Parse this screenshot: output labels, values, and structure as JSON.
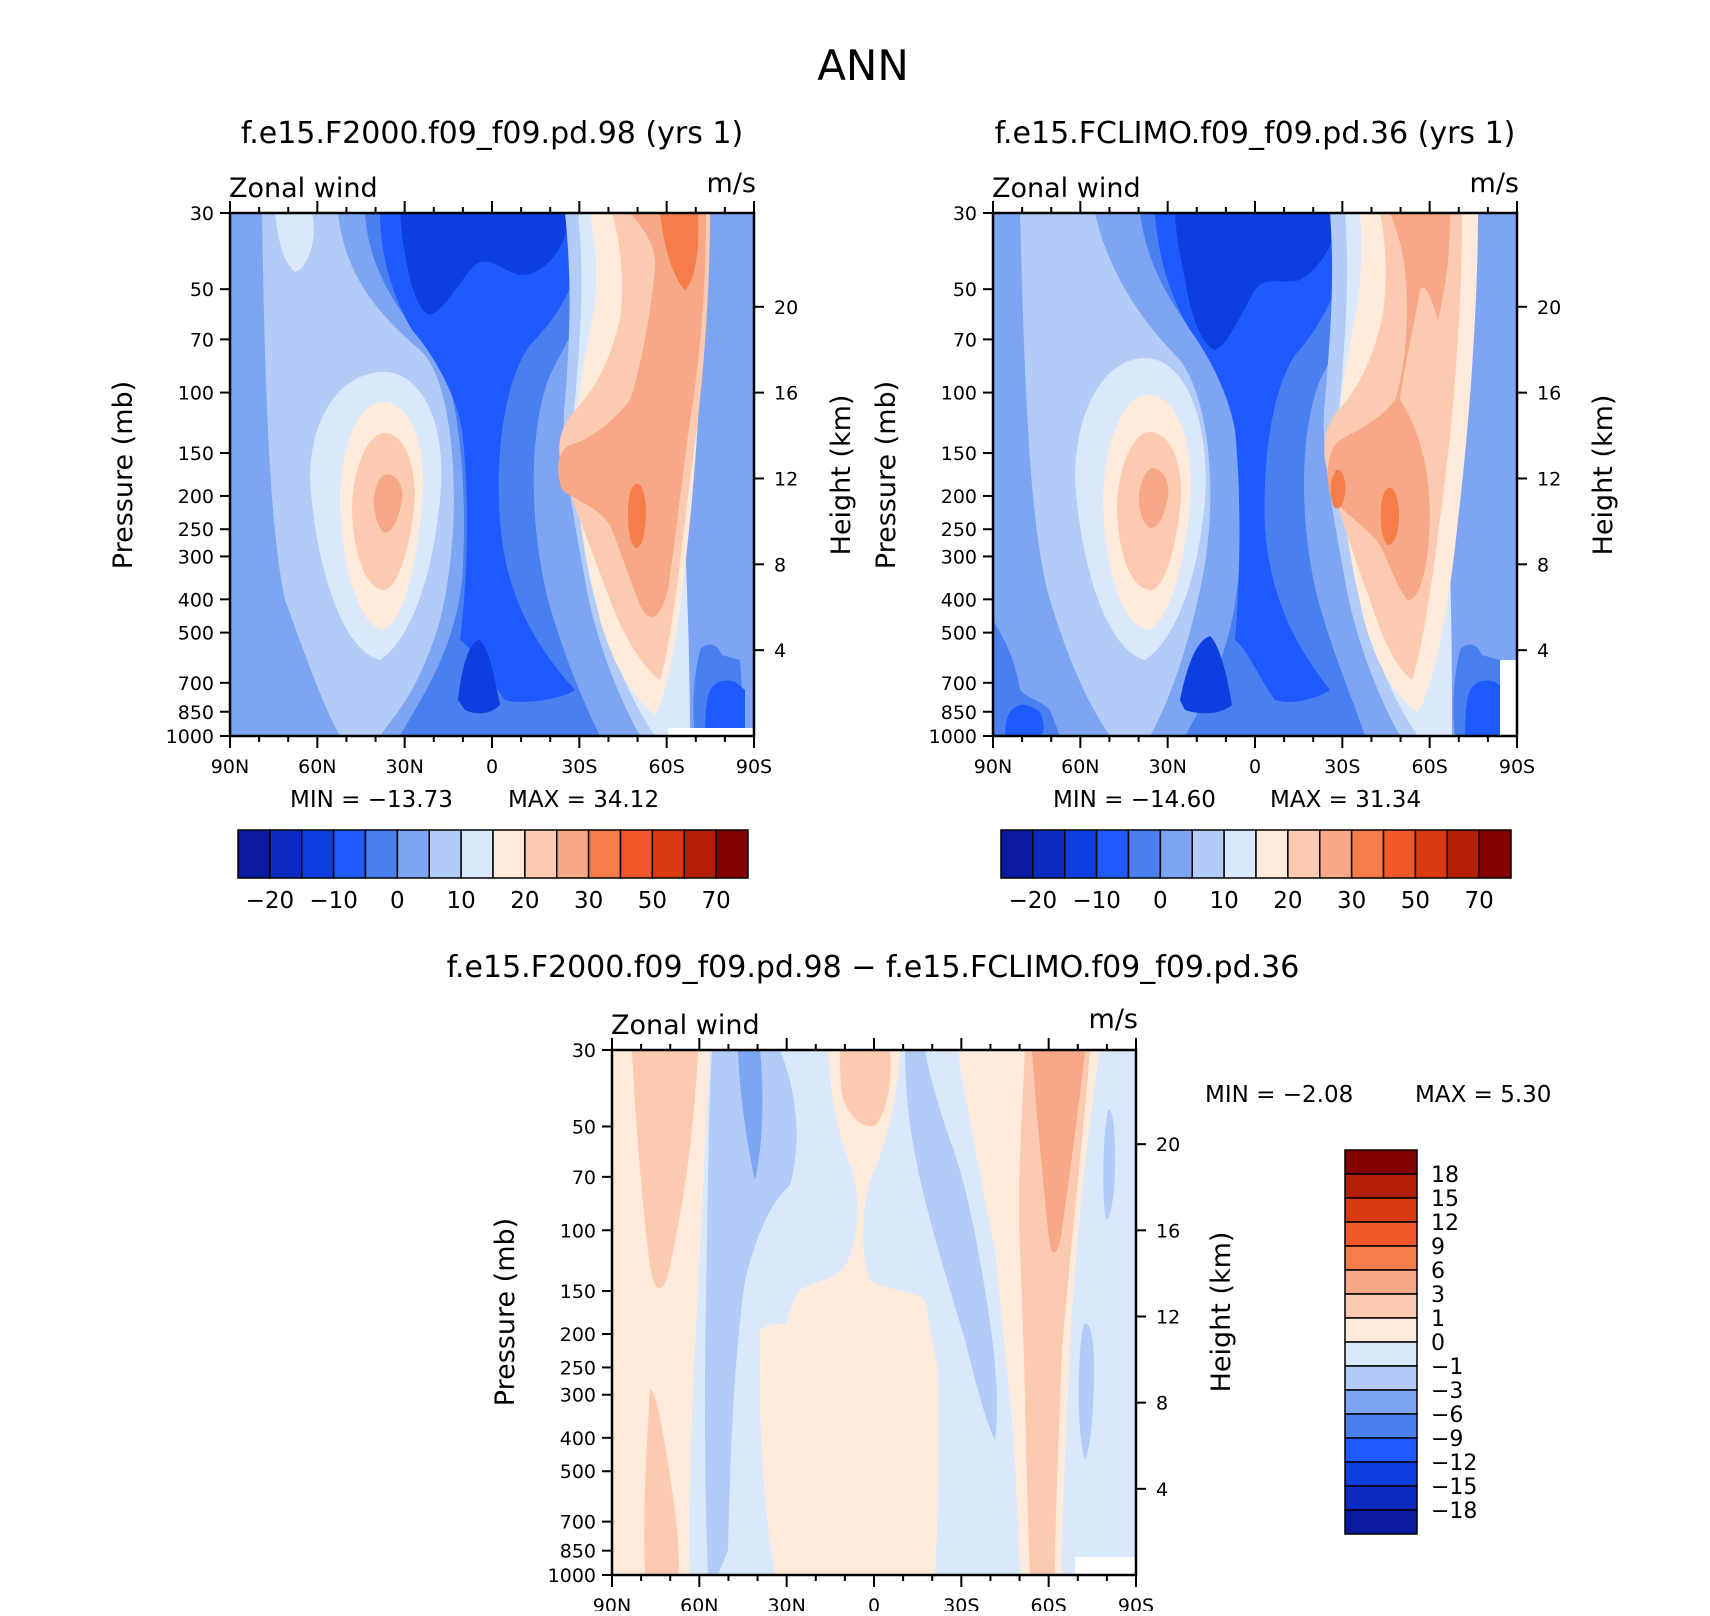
{
  "figure_title": "ANN",
  "colors": {
    "abs_scale": [
      "#0a1aa0",
      "#0b2ac0",
      "#0d3fe0",
      "#1e5aff",
      "#4a7fef",
      "#7ea4f4",
      "#b2cbf7",
      "#d9e8fb",
      "#fdeadb",
      "#fbcab0",
      "#f7a886",
      "#f57d4a",
      "#f2582a",
      "#d93a12",
      "#b21f05",
      "#850000"
    ],
    "diff_scale": [
      "#0a1aa0",
      "#0b2ac0",
      "#0d3fe0",
      "#1e5aff",
      "#4a7fef",
      "#7ea4f4",
      "#b2cbf7",
      "#d9e8fb",
      "#fdeadb",
      "#fbcab0",
      "#f7a886",
      "#f57d4a",
      "#f2582a",
      "#d93a12",
      "#b21f05",
      "#850000"
    ]
  },
  "chart_data": [
    {
      "type": "contour",
      "title": "f.e15.F2000.f09_f09.pd.98 (yrs 1)",
      "left_label": "Zonal wind",
      "right_label": "m/s",
      "ylabel": "Pressure (mb)",
      "y2label": "Height (km)",
      "x_ticks": [
        "90N",
        "60N",
        "30N",
        "0",
        "30S",
        "60S",
        "90S"
      ],
      "y_ticks": [
        "30",
        "50",
        "70",
        "100",
        "150",
        "200",
        "250",
        "300",
        "400",
        "500",
        "700",
        "850",
        "1000"
      ],
      "y2_ticks": [
        "20",
        "16",
        "12",
        "8",
        "4"
      ],
      "min_text": "MIN = −13.73",
      "max_text": "MAX = 34.12",
      "colorbar_labels": [
        "−20",
        "−10",
        "0",
        "10",
        "20",
        "30",
        "50",
        "70"
      ]
    },
    {
      "type": "contour",
      "title": "f.e15.FCLIMO.f09_f09.pd.36 (yrs 1)",
      "left_label": "Zonal wind",
      "right_label": "m/s",
      "ylabel": "Pressure (mb)",
      "y2label": "Height (km)",
      "x_ticks": [
        "90N",
        "60N",
        "30N",
        "0",
        "30S",
        "60S",
        "90S"
      ],
      "y_ticks": [
        "30",
        "50",
        "70",
        "100",
        "150",
        "200",
        "250",
        "300",
        "400",
        "500",
        "700",
        "850",
        "1000"
      ],
      "y2_ticks": [
        "20",
        "16",
        "12",
        "8",
        "4"
      ],
      "min_text": "MIN = −14.60",
      "max_text": "MAX = 31.34",
      "colorbar_labels": [
        "−20",
        "−10",
        "0",
        "10",
        "20",
        "30",
        "50",
        "70"
      ]
    },
    {
      "type": "contour",
      "title": "f.e15.F2000.f09_f09.pd.98 − f.e15.FCLIMO.f09_f09.pd.36",
      "left_label": "Zonal wind",
      "right_label": "m/s",
      "ylabel": "Pressure (mb)",
      "y2label": "Height (km)",
      "x_ticks": [
        "90N",
        "60N",
        "30N",
        "0",
        "30S",
        "60S",
        "90S"
      ],
      "y_ticks": [
        "30",
        "50",
        "70",
        "100",
        "150",
        "200",
        "250",
        "300",
        "400",
        "500",
        "700",
        "850",
        "1000"
      ],
      "y2_ticks": [
        "20",
        "16",
        "12",
        "8",
        "4"
      ],
      "min_text": "MIN = −2.08",
      "max_text": "MAX = 5.30",
      "colorbar_labels": [
        "18",
        "15",
        "12",
        "9",
        "6",
        "3",
        "1",
        "0",
        "−1",
        "−3",
        "−6",
        "−9",
        "−12",
        "−15",
        "−18"
      ]
    }
  ]
}
